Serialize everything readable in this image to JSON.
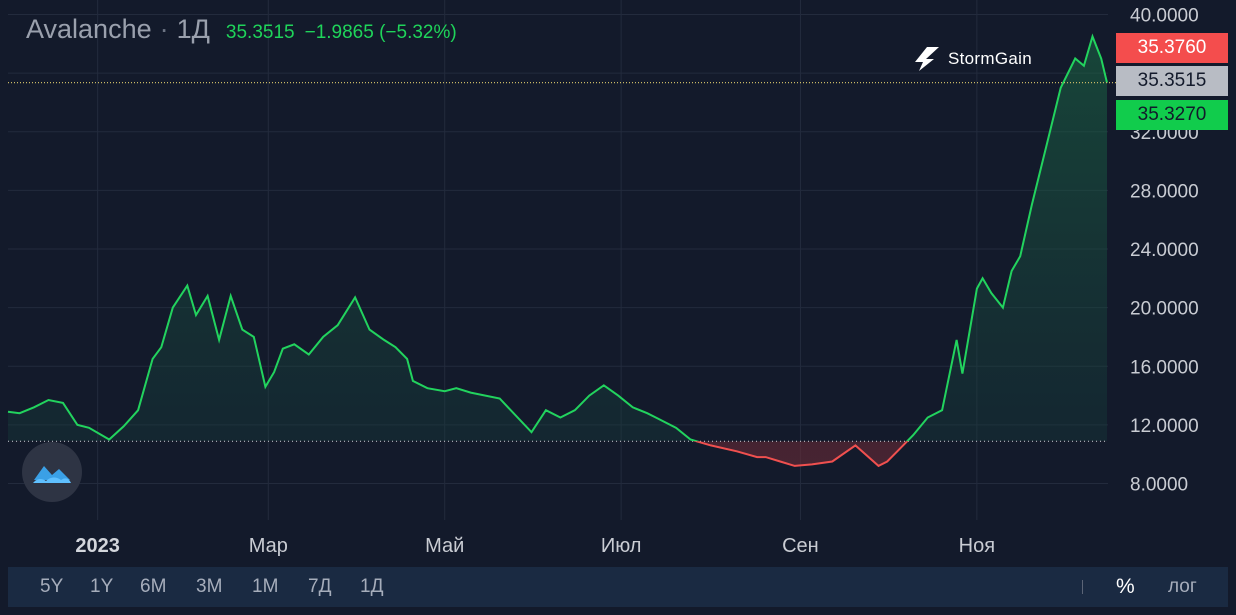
{
  "header": {
    "symbol": "Avalanche",
    "separator": "·",
    "timeframe": "1Д",
    "last_price": "35.3515",
    "change": "−1.9865 (−5.32%)"
  },
  "brand": {
    "name": "StormGain",
    "icon": "stormgain-logo-icon"
  },
  "price_badges": {
    "ask": "35.3760",
    "last": "35.3515",
    "bid": "35.3270"
  },
  "toolbar": {
    "periods": [
      "5Y",
      "1Y",
      "6M",
      "3M",
      "1M",
      "7Д",
      "1Д"
    ],
    "percent_toggle": "%",
    "log_toggle": "лог"
  },
  "colors": {
    "background": "#131a2b",
    "up_line": "#22d35e",
    "down_line": "#f0504f",
    "ask_badge": "#f44d4d",
    "bid_badge": "#11cc4c"
  },
  "chart_data": {
    "type": "area",
    "title": "Avalanche · 1Д",
    "x_tick_labels": [
      "2023",
      "Мар",
      "Май",
      "Июл",
      "Сен",
      "Ноя"
    ],
    "y_tick_labels": [
      "8.0000",
      "12.0000",
      "16.0000",
      "20.0000",
      "24.0000",
      "28.0000",
      "32.0000",
      "36.0000",
      "40.0000"
    ],
    "ylim": [
      6.8,
      41.5
    ],
    "baseline": 10.88,
    "current_price": 35.3515,
    "grid": true,
    "x": [
      "2022-12-01",
      "2022-12-05",
      "2022-12-10",
      "2022-12-15",
      "2022-12-20",
      "2022-12-25",
      "2022-12-29",
      "2023-01-05",
      "2023-01-10",
      "2023-01-15",
      "2023-01-20",
      "2023-01-23",
      "2023-01-27",
      "2023-02-01",
      "2023-02-04",
      "2023-02-08",
      "2023-02-12",
      "2023-02-16",
      "2023-02-20",
      "2023-02-24",
      "2023-02-28",
      "2023-03-03",
      "2023-03-06",
      "2023-03-10",
      "2023-03-15",
      "2023-03-20",
      "2023-03-25",
      "2023-03-31",
      "2023-04-05",
      "2023-04-10",
      "2023-04-14",
      "2023-04-18",
      "2023-04-20",
      "2023-04-25",
      "2023-05-01",
      "2023-05-05",
      "2023-05-10",
      "2023-05-20",
      "2023-05-31",
      "2023-06-05",
      "2023-06-10",
      "2023-06-15",
      "2023-06-20",
      "2023-06-25",
      "2023-06-30",
      "2023-07-05",
      "2023-07-10",
      "2023-07-13",
      "2023-07-20",
      "2023-07-25",
      "2023-08-01",
      "2023-08-10",
      "2023-08-17",
      "2023-08-20",
      "2023-08-25",
      "2023-08-30",
      "2023-09-05",
      "2023-09-12",
      "2023-09-20",
      "2023-09-28",
      "2023-10-01",
      "2023-10-05",
      "2023-10-10",
      "2023-10-15",
      "2023-10-20",
      "2023-10-25",
      "2023-10-27",
      "2023-11-01",
      "2023-11-03",
      "2023-11-06",
      "2023-11-10",
      "2023-11-13",
      "2023-11-16",
      "2023-11-20",
      "2023-11-25",
      "2023-11-30",
      "2023-12-05",
      "2023-12-08",
      "2023-12-11",
      "2023-12-14",
      "2023-12-16"
    ],
    "series": [
      {
        "values": [
          12.9,
          12.8,
          13.2,
          13.7,
          13.5,
          12.0,
          11.8,
          11.0,
          11.9,
          13.0,
          16.5,
          17.3,
          20.0,
          21.5,
          19.5,
          20.8,
          17.8,
          20.8,
          18.5,
          18.0,
          14.6,
          15.6,
          17.2,
          17.5,
          16.8,
          18.0,
          18.8,
          20.7,
          18.5,
          17.8,
          17.3,
          16.5,
          15.0,
          14.5,
          14.3,
          14.5,
          14.2,
          13.8,
          11.5,
          13.0,
          12.5,
          13.0,
          14.0,
          14.7,
          14.0,
          13.2,
          12.8,
          12.5,
          11.8,
          11.0,
          10.6,
          10.2,
          9.8,
          9.8,
          9.5,
          9.2,
          9.3,
          9.5,
          10.6,
          9.2,
          9.5,
          10.3,
          11.3,
          12.5,
          13.0,
          17.8,
          15.5,
          21.3,
          22.0,
          21.0,
          20.0,
          22.5,
          23.5,
          27.0,
          31.0,
          35.0,
          37.0,
          36.5,
          38.5,
          37.0,
          35.35
        ]
      }
    ]
  }
}
